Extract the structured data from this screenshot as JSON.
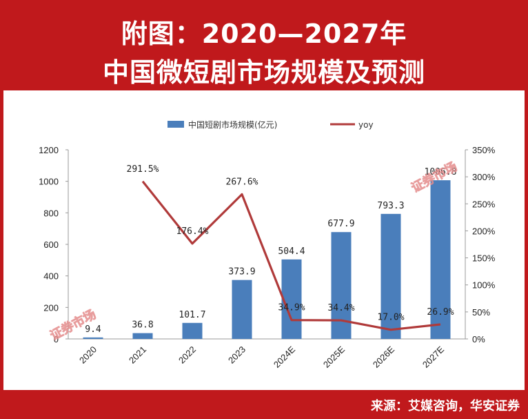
{
  "title": {
    "line1": "附图：2020—2027年",
    "line2": "中国微短剧市场规模及预测"
  },
  "source": "来源：艾媒咨询，华安证券",
  "colors": {
    "band": "#c0191c",
    "bar": "#4a7ebb",
    "line": "#b03a3a"
  },
  "watermark": "证券市场",
  "chart_data": {
    "type": "bar",
    "categories": [
      "2020",
      "2021",
      "2022",
      "2023",
      "2024E",
      "2025E",
      "2026E",
      "2027E"
    ],
    "series": [
      {
        "name": "中国短剧市场规模(亿元)",
        "type": "bar",
        "axis": "left",
        "values": [
          9.4,
          36.8,
          101.7,
          373.9,
          504.4,
          677.9,
          793.3,
          1006.8
        ],
        "labels": [
          "9.4",
          "36.8",
          "101.7",
          "373.9",
          "504.4",
          "677.9",
          "793.3",
          "1006.8"
        ]
      },
      {
        "name": "yoy",
        "type": "line",
        "axis": "right",
        "values": [
          null,
          291.5,
          176.4,
          267.6,
          34.9,
          34.4,
          17.0,
          26.9
        ],
        "labels": [
          "",
          "291.5%",
          "176.4%",
          "267.6%",
          "34.9%",
          "34.4%",
          "17.0%",
          "26.9%"
        ]
      }
    ],
    "y_left": {
      "min": 0,
      "max": 1200,
      "ticks": [
        "0",
        "200",
        "400",
        "600",
        "800",
        "1000",
        "1200"
      ]
    },
    "y_right": {
      "min": 0,
      "max": 350,
      "ticks": [
        "0%",
        "50%",
        "100%",
        "150%",
        "200%",
        "250%",
        "300%",
        "350%"
      ]
    },
    "legend_position": "top-center"
  }
}
